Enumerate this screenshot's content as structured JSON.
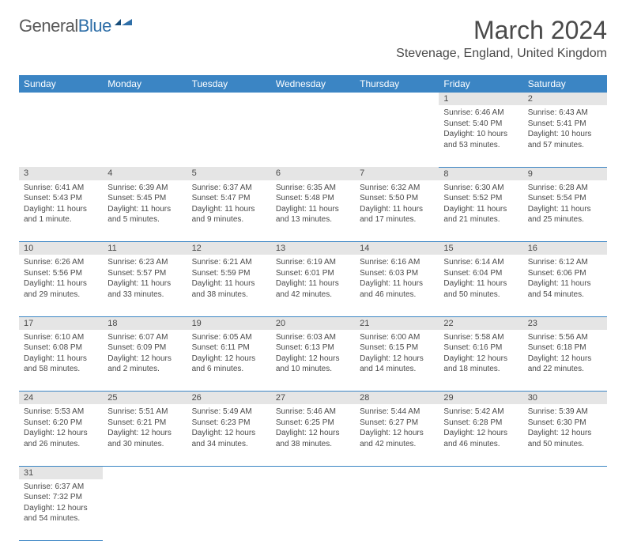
{
  "logo": {
    "general": "General",
    "blue": "Blue"
  },
  "title": "March 2024",
  "location": "Stevenage, England, United Kingdom",
  "colors": {
    "header_bg": "#3b85c4",
    "header_text": "#ffffff",
    "daynum_bg": "#e5e5e5",
    "border": "#3b85c4",
    "text": "#4a4a4a",
    "logo_blue": "#2f6fa8",
    "logo_grey": "#5a5a5a"
  },
  "weekdays": [
    "Sunday",
    "Monday",
    "Tuesday",
    "Wednesday",
    "Thursday",
    "Friday",
    "Saturday"
  ],
  "weeks": [
    [
      null,
      null,
      null,
      null,
      null,
      {
        "n": "1",
        "sr": "Sunrise: 6:46 AM",
        "ss": "Sunset: 5:40 PM",
        "dl": "Daylight: 10 hours and 53 minutes."
      },
      {
        "n": "2",
        "sr": "Sunrise: 6:43 AM",
        "ss": "Sunset: 5:41 PM",
        "dl": "Daylight: 10 hours and 57 minutes."
      }
    ],
    [
      {
        "n": "3",
        "sr": "Sunrise: 6:41 AM",
        "ss": "Sunset: 5:43 PM",
        "dl": "Daylight: 11 hours and 1 minute."
      },
      {
        "n": "4",
        "sr": "Sunrise: 6:39 AM",
        "ss": "Sunset: 5:45 PM",
        "dl": "Daylight: 11 hours and 5 minutes."
      },
      {
        "n": "5",
        "sr": "Sunrise: 6:37 AM",
        "ss": "Sunset: 5:47 PM",
        "dl": "Daylight: 11 hours and 9 minutes."
      },
      {
        "n": "6",
        "sr": "Sunrise: 6:35 AM",
        "ss": "Sunset: 5:48 PM",
        "dl": "Daylight: 11 hours and 13 minutes."
      },
      {
        "n": "7",
        "sr": "Sunrise: 6:32 AM",
        "ss": "Sunset: 5:50 PM",
        "dl": "Daylight: 11 hours and 17 minutes."
      },
      {
        "n": "8",
        "sr": "Sunrise: 6:30 AM",
        "ss": "Sunset: 5:52 PM",
        "dl": "Daylight: 11 hours and 21 minutes."
      },
      {
        "n": "9",
        "sr": "Sunrise: 6:28 AM",
        "ss": "Sunset: 5:54 PM",
        "dl": "Daylight: 11 hours and 25 minutes."
      }
    ],
    [
      {
        "n": "10",
        "sr": "Sunrise: 6:26 AM",
        "ss": "Sunset: 5:56 PM",
        "dl": "Daylight: 11 hours and 29 minutes."
      },
      {
        "n": "11",
        "sr": "Sunrise: 6:23 AM",
        "ss": "Sunset: 5:57 PM",
        "dl": "Daylight: 11 hours and 33 minutes."
      },
      {
        "n": "12",
        "sr": "Sunrise: 6:21 AM",
        "ss": "Sunset: 5:59 PM",
        "dl": "Daylight: 11 hours and 38 minutes."
      },
      {
        "n": "13",
        "sr": "Sunrise: 6:19 AM",
        "ss": "Sunset: 6:01 PM",
        "dl": "Daylight: 11 hours and 42 minutes."
      },
      {
        "n": "14",
        "sr": "Sunrise: 6:16 AM",
        "ss": "Sunset: 6:03 PM",
        "dl": "Daylight: 11 hours and 46 minutes."
      },
      {
        "n": "15",
        "sr": "Sunrise: 6:14 AM",
        "ss": "Sunset: 6:04 PM",
        "dl": "Daylight: 11 hours and 50 minutes."
      },
      {
        "n": "16",
        "sr": "Sunrise: 6:12 AM",
        "ss": "Sunset: 6:06 PM",
        "dl": "Daylight: 11 hours and 54 minutes."
      }
    ],
    [
      {
        "n": "17",
        "sr": "Sunrise: 6:10 AM",
        "ss": "Sunset: 6:08 PM",
        "dl": "Daylight: 11 hours and 58 minutes."
      },
      {
        "n": "18",
        "sr": "Sunrise: 6:07 AM",
        "ss": "Sunset: 6:09 PM",
        "dl": "Daylight: 12 hours and 2 minutes."
      },
      {
        "n": "19",
        "sr": "Sunrise: 6:05 AM",
        "ss": "Sunset: 6:11 PM",
        "dl": "Daylight: 12 hours and 6 minutes."
      },
      {
        "n": "20",
        "sr": "Sunrise: 6:03 AM",
        "ss": "Sunset: 6:13 PM",
        "dl": "Daylight: 12 hours and 10 minutes."
      },
      {
        "n": "21",
        "sr": "Sunrise: 6:00 AM",
        "ss": "Sunset: 6:15 PM",
        "dl": "Daylight: 12 hours and 14 minutes."
      },
      {
        "n": "22",
        "sr": "Sunrise: 5:58 AM",
        "ss": "Sunset: 6:16 PM",
        "dl": "Daylight: 12 hours and 18 minutes."
      },
      {
        "n": "23",
        "sr": "Sunrise: 5:56 AM",
        "ss": "Sunset: 6:18 PM",
        "dl": "Daylight: 12 hours and 22 minutes."
      }
    ],
    [
      {
        "n": "24",
        "sr": "Sunrise: 5:53 AM",
        "ss": "Sunset: 6:20 PM",
        "dl": "Daylight: 12 hours and 26 minutes."
      },
      {
        "n": "25",
        "sr": "Sunrise: 5:51 AM",
        "ss": "Sunset: 6:21 PM",
        "dl": "Daylight: 12 hours and 30 minutes."
      },
      {
        "n": "26",
        "sr": "Sunrise: 5:49 AM",
        "ss": "Sunset: 6:23 PM",
        "dl": "Daylight: 12 hours and 34 minutes."
      },
      {
        "n": "27",
        "sr": "Sunrise: 5:46 AM",
        "ss": "Sunset: 6:25 PM",
        "dl": "Daylight: 12 hours and 38 minutes."
      },
      {
        "n": "28",
        "sr": "Sunrise: 5:44 AM",
        "ss": "Sunset: 6:27 PM",
        "dl": "Daylight: 12 hours and 42 minutes."
      },
      {
        "n": "29",
        "sr": "Sunrise: 5:42 AM",
        "ss": "Sunset: 6:28 PM",
        "dl": "Daylight: 12 hours and 46 minutes."
      },
      {
        "n": "30",
        "sr": "Sunrise: 5:39 AM",
        "ss": "Sunset: 6:30 PM",
        "dl": "Daylight: 12 hours and 50 minutes."
      }
    ],
    [
      {
        "n": "31",
        "sr": "Sunrise: 6:37 AM",
        "ss": "Sunset: 7:32 PM",
        "dl": "Daylight: 12 hours and 54 minutes."
      },
      null,
      null,
      null,
      null,
      null,
      null
    ]
  ]
}
